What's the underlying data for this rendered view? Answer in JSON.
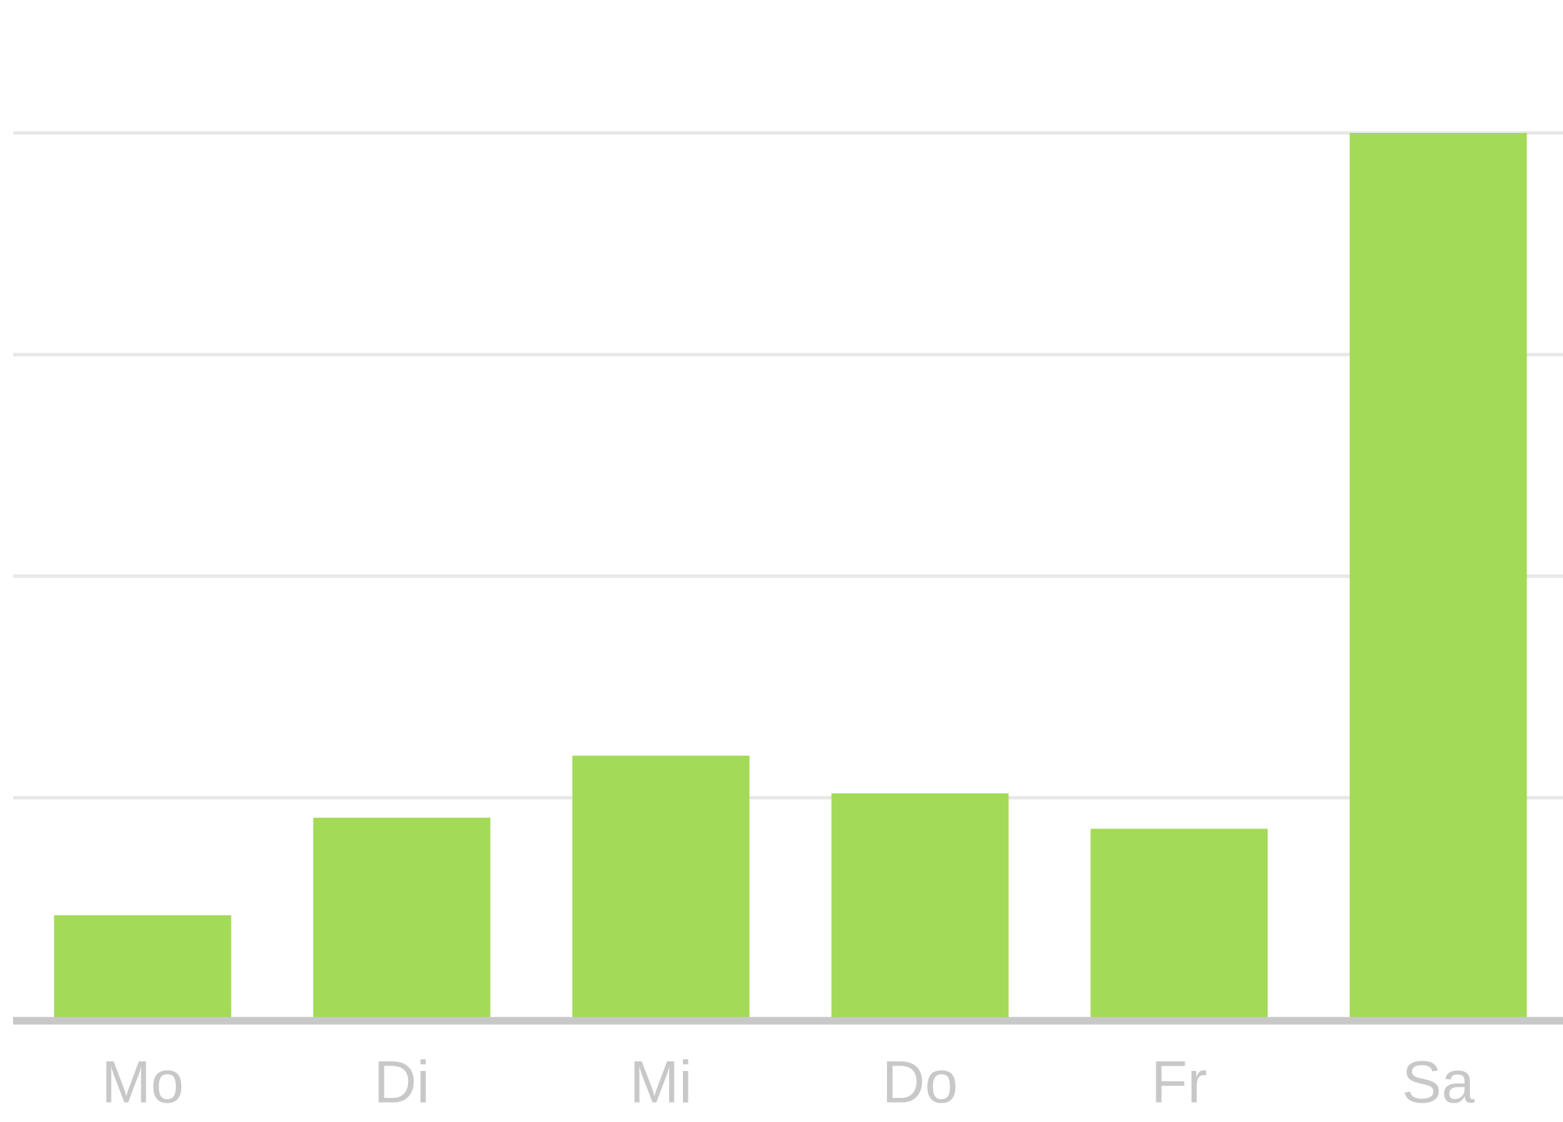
{
  "chart_data": {
    "type": "bar",
    "categories": [
      "Mo",
      "Di",
      "Mi",
      "Do",
      "Fr",
      "Sa"
    ],
    "values": [
      0.47,
      0.91,
      1.19,
      1.02,
      0.86,
      4.0
    ],
    "color": "#a3da57",
    "ylim": [
      0,
      4.6
    ],
    "yticks": [
      0,
      1,
      2,
      3,
      4
    ],
    "grid": true
  }
}
